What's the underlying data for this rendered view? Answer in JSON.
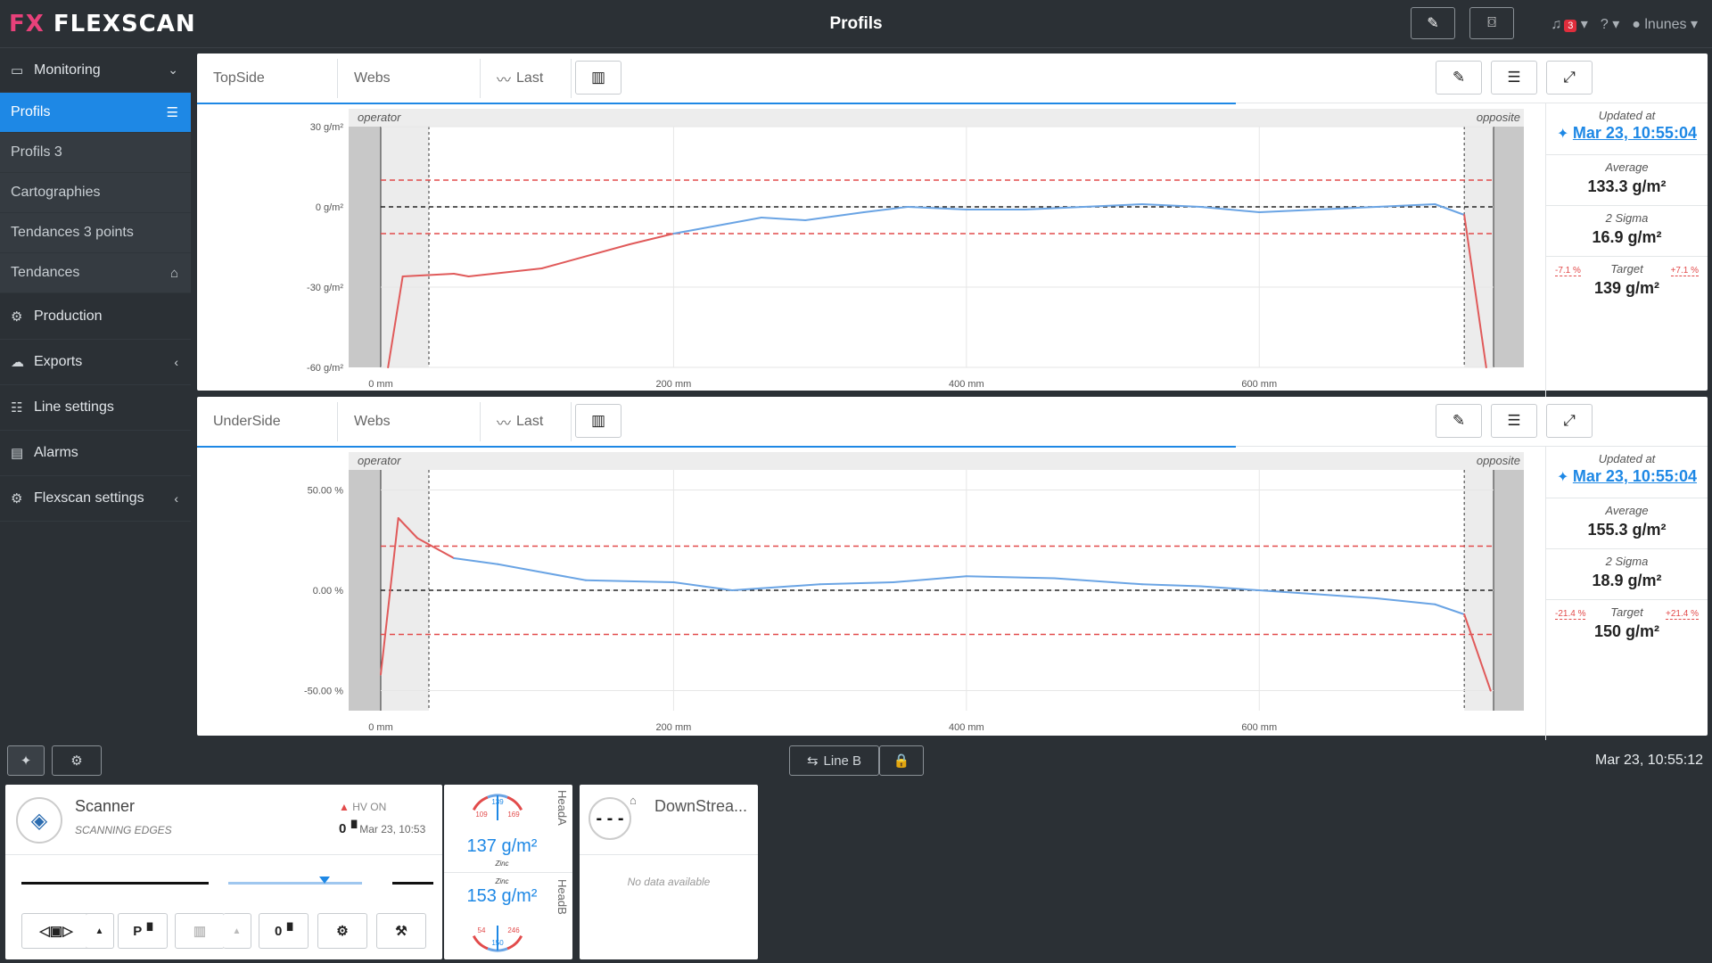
{
  "app": {
    "logo_mark": "FX",
    "logo_text": "FLEXSCAN",
    "title": "Profils",
    "notif_count": "3",
    "user": "lnunes"
  },
  "sidebar": {
    "items": [
      {
        "label": "Monitoring"
      },
      {
        "label": "Profils"
      },
      {
        "label": "Profils 3"
      },
      {
        "label": "Cartographies"
      },
      {
        "label": "Tendances 3 points"
      },
      {
        "label": "Tendances"
      },
      {
        "label": "Production"
      },
      {
        "label": "Exports"
      },
      {
        "label": "Line settings"
      },
      {
        "label": "Alarms"
      },
      {
        "label": "Flexscan settings"
      }
    ]
  },
  "panels": [
    {
      "side": "TopSide",
      "webs": "Webs",
      "last": "Last",
      "operator": "operator",
      "opposite": "opposite",
      "updated_label": "Updated at",
      "updated": "Mar 23, 10:55:04",
      "avg_label": "Average",
      "avg": "133.3 g/m²",
      "sigma_label": "2 Sigma",
      "sigma": "16.9 g/m²",
      "target_label": "Target",
      "target": "139 g/m²",
      "tol_minus": "-7.1 %",
      "tol_plus": "+7.1 %"
    },
    {
      "side": "UnderSide",
      "webs": "Webs",
      "last": "Last",
      "operator": "operator",
      "opposite": "opposite",
      "updated_label": "Updated at",
      "updated": "Mar 23, 10:55:04",
      "avg_label": "Average",
      "avg": "155.3 g/m²",
      "sigma_label": "2 Sigma",
      "sigma": "18.9 g/m²",
      "target_label": "Target",
      "target": "150 g/m²",
      "tol_minus": "-21.4 %",
      "tol_plus": "+21.4 %"
    }
  ],
  "chart_data": [
    {
      "type": "line",
      "x_ticks": [
        "0 mm",
        "200 mm",
        "400 mm",
        "600 mm"
      ],
      "y_ticks": [
        "30 g/m²",
        "0 g/m²",
        "-30 g/m²",
        "-60 g/m²"
      ],
      "ylim": [
        -60,
        30
      ],
      "xlim": [
        0,
        760
      ],
      "tolerance": [
        -10,
        10
      ],
      "edges": [
        0,
        740
      ],
      "series": [
        {
          "values": [
            [
              5,
              -60
            ],
            [
              15,
              -26
            ],
            [
              50,
              -25
            ],
            [
              60,
              -26
            ],
            [
              110,
              -23
            ],
            [
              170,
              -14
            ],
            [
              200,
              -10
            ],
            [
              230,
              -7
            ],
            [
              260,
              -4
            ],
            [
              290,
              -5
            ],
            [
              330,
              -2
            ],
            [
              360,
              0
            ],
            [
              400,
              -1
            ],
            [
              440,
              -1
            ],
            [
              480,
              0
            ],
            [
              520,
              1
            ],
            [
              560,
              0
            ],
            [
              600,
              -2
            ],
            [
              640,
              -1
            ],
            [
              680,
              0
            ],
            [
              720,
              1
            ],
            [
              740,
              -3
            ],
            [
              755,
              -60
            ]
          ]
        }
      ]
    },
    {
      "type": "line",
      "x_ticks": [
        "0 mm",
        "200 mm",
        "400 mm",
        "600 mm"
      ],
      "y_ticks": [
        "50.00 %",
        "0.00 %",
        "-50.00 %"
      ],
      "ylim": [
        -60,
        60
      ],
      "xlim": [
        0,
        760
      ],
      "tolerance": [
        -22,
        22
      ],
      "edges": [
        0,
        740
      ],
      "series": [
        {
          "values": [
            [
              0,
              -42
            ],
            [
              12,
              36
            ],
            [
              25,
              26
            ],
            [
              50,
              16
            ],
            [
              80,
              13
            ],
            [
              140,
              5
            ],
            [
              200,
              4
            ],
            [
              240,
              0
            ],
            [
              300,
              3
            ],
            [
              350,
              4
            ],
            [
              400,
              7
            ],
            [
              460,
              6
            ],
            [
              520,
              3
            ],
            [
              560,
              2
            ],
            [
              600,
              0
            ],
            [
              640,
              -2
            ],
            [
              680,
              -4
            ],
            [
              720,
              -7
            ],
            [
              740,
              -12
            ],
            [
              758,
              -50
            ]
          ]
        }
      ]
    }
  ],
  "bottom": {
    "line": "Line B",
    "clock": "Mar 23, 10:55:12"
  },
  "scanner": {
    "title": "Scanner",
    "status": "SCANNING EDGES",
    "hv": "HV ON",
    "date": "Mar 23, 10:53"
  },
  "heads": {
    "a_label": "HeadA",
    "a_value": "137 g/m²",
    "a_center": "139",
    "a_min": "109",
    "a_max": "169",
    "b_label": "HeadB",
    "b_value": "153 g/m²",
    "b_center": "150",
    "b_min": "54",
    "b_max": "246",
    "zinc": "Zinc"
  },
  "downstream": {
    "title": "DownStrea...",
    "empty": "No data available"
  }
}
